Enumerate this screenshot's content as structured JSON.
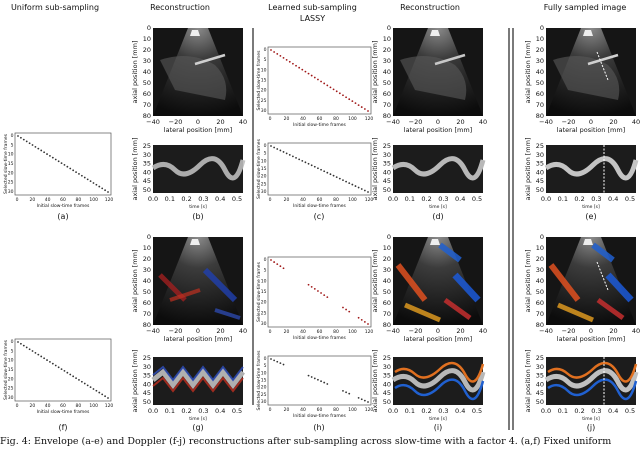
{
  "columns": {
    "c1": "Uniform sub-sampling",
    "c2": "Reconstruction",
    "c3": "Learned sub-sampling",
    "c3b": "LASSY",
    "c4": "Reconstruction",
    "c5": "Fully sampled image"
  },
  "panel_labels": [
    "(a)",
    "(b)",
    "(c)",
    "(d)",
    "(e)",
    "(f)",
    "(g)",
    "(h)",
    "(i)",
    "(j)"
  ],
  "axes": {
    "sampling_x": "Initial slow-time frames",
    "sampling_y": "Selected slow-time frames",
    "img_x": "lateral position [mm]",
    "img_y": "axial position [mm]",
    "mmode_x": "time [s]",
    "mmode_y": "axial position [mm]",
    "sampling_xticks": [
      "0",
      "20",
      "40",
      "60",
      "80",
      "100",
      "120"
    ],
    "sampling_yticks": [
      "0",
      "5",
      "10",
      "15",
      "20",
      "25",
      "30"
    ],
    "img_xticks": [
      "−40",
      "−20",
      "0",
      "20",
      "40"
    ],
    "img_yticks": [
      "0",
      "10",
      "20",
      "30",
      "40",
      "50",
      "60",
      "70",
      "80"
    ],
    "mmode_xticks": [
      "0.0",
      "0.1",
      "0.2",
      "0.3",
      "0.4",
      "0.5"
    ],
    "mmode_yticks": [
      "25",
      "30",
      "35",
      "40",
      "45",
      "50"
    ]
  },
  "caption": "Fig. 4: Envelope (a-e) and Doppler (f-j) reconstructions after sub-sampling across slow-time with a factor 4. (a,f) Fixed uniform"
}
